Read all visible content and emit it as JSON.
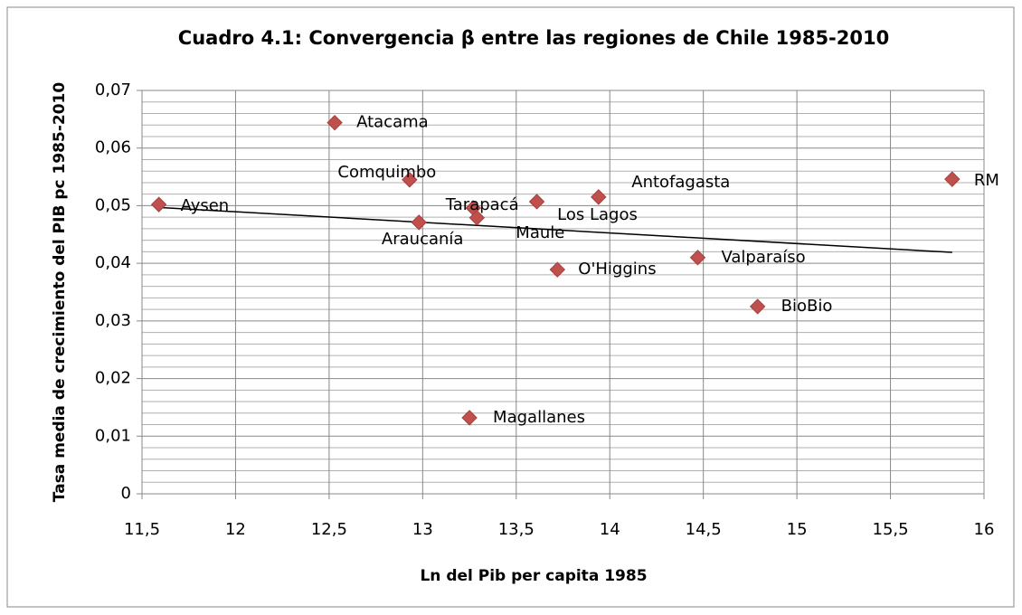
{
  "chart_data": {
    "type": "scatter",
    "title": "Cuadro 4.1: Convergencia β entre las regiones de Chile 1985-2010",
    "xlabel": "Ln del Pib per capita 1985",
    "ylabel": "Tasa media de crecimiento del PIB pc 1985-2010",
    "point_labels": [
      "Aysen",
      "Atacama",
      "Comquimbo",
      "Araucanía",
      "Tarapacá",
      "Maule",
      "Los Lagos",
      "Magallanes",
      "O'Higgins",
      "Antofagasta",
      "Valparaíso",
      "BioBio",
      "RM"
    ],
    "x": [
      11.59,
      12.53,
      12.93,
      12.98,
      13.27,
      13.29,
      13.61,
      13.25,
      13.72,
      13.94,
      14.47,
      14.79,
      15.83
    ],
    "values": [
      0.0502,
      0.0644,
      0.0545,
      0.0471,
      0.0496,
      0.0479,
      0.0507,
      0.0132,
      0.0389,
      0.0515,
      0.041,
      0.0325,
      0.0546
    ],
    "color": "#c0504d",
    "trendline": {
      "x": [
        11.59,
        15.83
      ],
      "values": [
        0.0497,
        0.0419
      ],
      "color": "#000000"
    },
    "xlim": [
      11.5,
      16
    ],
    "ylim": [
      0,
      0.07
    ],
    "xticks": [
      {
        "value": 11.5,
        "label": "11,5"
      },
      12,
      {
        "value": 12.5,
        "label": "12,5"
      },
      13,
      {
        "value": 13.5,
        "label": "13,5"
      },
      14,
      {
        "value": 14.5,
        "label": "14,5"
      },
      15,
      {
        "value": 15.5,
        "label": "15,5"
      },
      16
    ],
    "yticks": [
      0,
      {
        "value": 0.01,
        "label": "0,01"
      },
      {
        "value": 0.02,
        "label": "0,02"
      },
      {
        "value": 0.03,
        "label": "0,03"
      },
      {
        "value": 0.04,
        "label": "0,04"
      },
      {
        "value": 0.05,
        "label": "0,05"
      },
      {
        "value": 0.06,
        "label": "0,06"
      },
      {
        "value": 0.07,
        "label": "0,07"
      }
    ],
    "y_minor_ticks": [
      0.002,
      0.004,
      0.006,
      0.008,
      0.012,
      0.014,
      0.016,
      0.018,
      0.022,
      0.024,
      0.026,
      0.028,
      0.032,
      0.034,
      0.036,
      0.038,
      0.042,
      0.044,
      0.046,
      0.048,
      0.052,
      0.054,
      0.056,
      0.058,
      0.062,
      0.064,
      0.066,
      0.068
    ],
    "grid": true
  }
}
